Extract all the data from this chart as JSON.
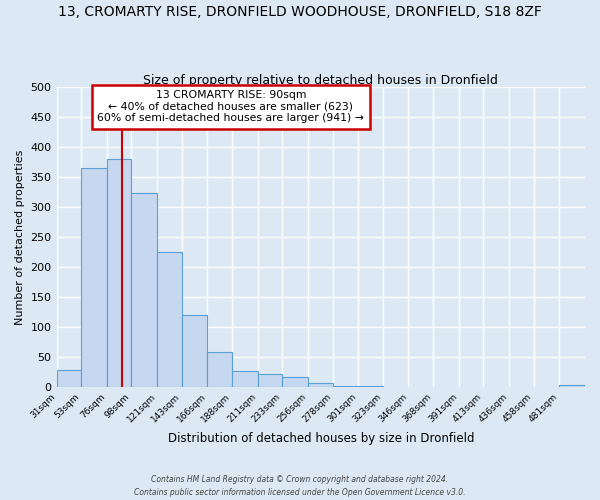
{
  "title": "13, CROMARTY RISE, DRONFIELD WOODHOUSE, DRONFIELD, S18 8ZF",
  "subtitle": "Size of property relative to detached houses in Dronfield",
  "xlabel": "Distribution of detached houses by size in Dronfield",
  "ylabel": "Number of detached properties",
  "bin_labels": [
    "31sqm",
    "53sqm",
    "76sqm",
    "98sqm",
    "121sqm",
    "143sqm",
    "166sqm",
    "188sqm",
    "211sqm",
    "233sqm",
    "256sqm",
    "278sqm",
    "301sqm",
    "323sqm",
    "346sqm",
    "368sqm",
    "391sqm",
    "413sqm",
    "436sqm",
    "458sqm",
    "481sqm"
  ],
  "bin_edges": [
    31,
    53,
    76,
    98,
    121,
    143,
    166,
    188,
    211,
    233,
    256,
    278,
    301,
    323,
    346,
    368,
    391,
    413,
    436,
    458,
    481
  ],
  "bar_heights": [
    28,
    365,
    380,
    323,
    225,
    120,
    58,
    27,
    22,
    17,
    6,
    2,
    1,
    0,
    0,
    0,
    0,
    0,
    0,
    0,
    3
  ],
  "bar_color": "#c5d8f0",
  "bar_edge_color": "#5a9fd4",
  "vline_x": 90,
  "vline_color": "#cc0000",
  "annotation_title": "13 CROMARTY RISE: 90sqm",
  "annotation_line1": "← 40% of detached houses are smaller (623)",
  "annotation_line2": "60% of semi-detached houses are larger (941) →",
  "annotation_box_edge": "#cc0000",
  "annotation_box_bg": "white",
  "footer1": "Contains HM Land Registry data © Crown copyright and database right 2024.",
  "footer2": "Contains public sector information licensed under the Open Government Licence v3.0.",
  "ylim": [
    0,
    500
  ],
  "bg_color": "#dce9f5",
  "plot_bg_color": "#dce9f5",
  "grid_color": "white",
  "title_fontsize": 10,
  "subtitle_fontsize": 9
}
